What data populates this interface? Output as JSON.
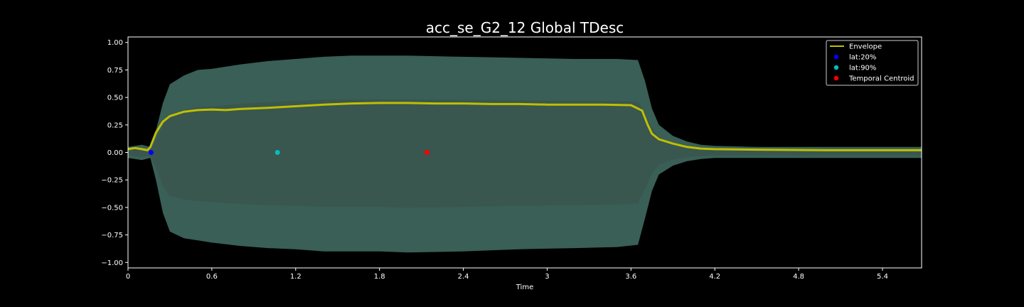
{
  "chart_data": {
    "type": "line",
    "title": "acc_se_G2_12 Global TDesc",
    "xlabel": "Time",
    "ylabel": "",
    "xlim": [
      0,
      5.68
    ],
    "ylim": [
      -1.05,
      1.05
    ],
    "x_ticks": [
      0,
      0.6,
      1.2,
      1.8,
      2.4,
      3.0,
      3.6,
      4.2,
      4.8,
      5.4
    ],
    "x_tick_labels": [
      "0",
      "0.6",
      "1.2",
      "1.8",
      "2.4",
      "3",
      "3.6",
      "4.2",
      "4.8",
      "5.4"
    ],
    "y_ticks": [
      1.0,
      0.75,
      0.5,
      0.25,
      0.0,
      -0.25,
      -0.5,
      -0.75,
      -1.0
    ],
    "y_tick_labels": [
      "1.00",
      "0.75",
      "0.50",
      "0.25",
      "0.00",
      "−0.25",
      "−0.50",
      "−0.75",
      "−1.00"
    ],
    "waveform": {
      "color": "#5f9e8f",
      "x": [
        0,
        0.1,
        0.16,
        0.2,
        0.25,
        0.3,
        0.4,
        0.5,
        0.6,
        0.8,
        1.0,
        1.2,
        1.4,
        1.6,
        1.8,
        2.0,
        2.4,
        2.8,
        3.2,
        3.5,
        3.65,
        3.7,
        3.75,
        3.8,
        3.9,
        4.0,
        4.1,
        4.2,
        4.5,
        5.0,
        5.68
      ],
      "upper": [
        0.05,
        0.07,
        0.05,
        0.2,
        0.45,
        0.62,
        0.7,
        0.75,
        0.76,
        0.8,
        0.83,
        0.85,
        0.87,
        0.88,
        0.88,
        0.88,
        0.87,
        0.86,
        0.85,
        0.85,
        0.84,
        0.65,
        0.4,
        0.25,
        0.15,
        0.1,
        0.07,
        0.06,
        0.05,
        0.05,
        0.05
      ],
      "lower": [
        -0.05,
        -0.07,
        -0.05,
        -0.25,
        -0.55,
        -0.72,
        -0.78,
        -0.8,
        -0.82,
        -0.85,
        -0.87,
        -0.88,
        -0.9,
        -0.9,
        -0.9,
        -0.91,
        -0.9,
        -0.88,
        -0.87,
        -0.86,
        -0.84,
        -0.6,
        -0.35,
        -0.2,
        -0.12,
        -0.08,
        -0.06,
        -0.05,
        -0.05,
        -0.05,
        -0.05
      ]
    },
    "series": [
      {
        "name": "Envelope",
        "color": "#bfbf00",
        "x": [
          0,
          0.05,
          0.1,
          0.14,
          0.16,
          0.2,
          0.25,
          0.3,
          0.4,
          0.5,
          0.6,
          0.7,
          0.8,
          1.0,
          1.2,
          1.4,
          1.6,
          1.8,
          2.0,
          2.2,
          2.4,
          2.6,
          2.8,
          3.0,
          3.2,
          3.4,
          3.6,
          3.68,
          3.72,
          3.75,
          3.8,
          3.9,
          4.0,
          4.1,
          4.2,
          4.5,
          5.0,
          5.5,
          5.68
        ],
        "y": [
          0.03,
          0.04,
          0.03,
          0.02,
          0.05,
          0.18,
          0.28,
          0.33,
          0.37,
          0.385,
          0.39,
          0.385,
          0.395,
          0.405,
          0.42,
          0.435,
          0.445,
          0.45,
          0.45,
          0.445,
          0.445,
          0.44,
          0.44,
          0.435,
          0.435,
          0.435,
          0.43,
          0.38,
          0.25,
          0.17,
          0.12,
          0.08,
          0.05,
          0.035,
          0.03,
          0.025,
          0.02,
          0.02,
          0.02
        ]
      }
    ],
    "points": [
      {
        "name": "lat:20%",
        "color": "#0000ff",
        "x": 0.165,
        "y": 0.0
      },
      {
        "name": "lat:90%",
        "color": "#00bfbf",
        "x": 1.07,
        "y": 0.0
      },
      {
        "name": "Temporal Centroid",
        "color": "#ff0000",
        "x": 2.14,
        "y": 0.0
      }
    ],
    "legend_position": "top-right",
    "grid": false
  }
}
